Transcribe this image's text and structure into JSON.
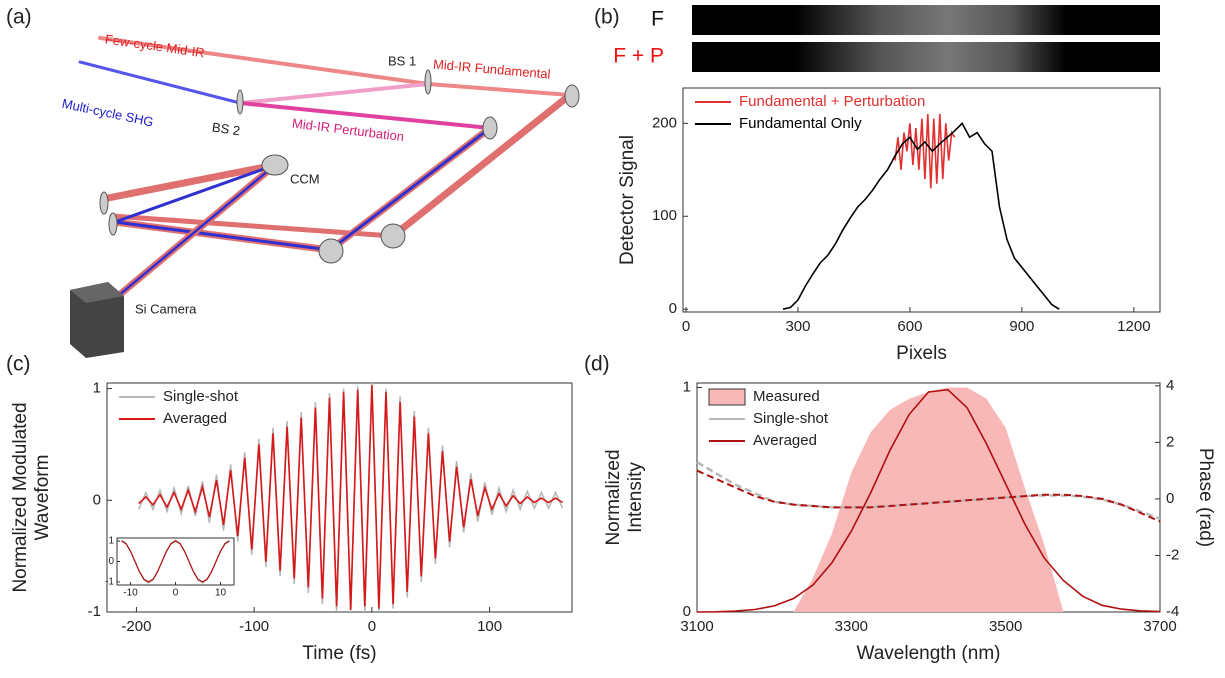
{
  "diagram": {
    "panel_label": "(a)",
    "labels": [
      "Few-cycle Mid-IR",
      "BS 1",
      "Mid-IR Fundamental",
      "Multi-cycle SHG",
      "BS 2",
      "Mid-IR Perturbation",
      "CCM",
      "Si Camera"
    ]
  },
  "chart_data": [
    {
      "type": "line",
      "label": "(b)",
      "image_labels": [
        {
          "text": "F",
          "color": "#111111"
        },
        {
          "text": "F + P",
          "color": "#ee1111"
        }
      ],
      "xlabel": "Pixels",
      "ylabel": [
        "Detector Signal"
      ],
      "xlim": [
        -8,
        1270
      ],
      "ylim": [
        -3,
        238
      ],
      "xticks": [
        0,
        300,
        600,
        900,
        1200
      ],
      "yticks": [
        0,
        100,
        200
      ],
      "legend": "upper left",
      "legend_text_color": "series",
      "series": [
        {
          "name": "Fundamental + Perturbation",
          "color": "#e03030",
          "x": [
            560,
            568,
            576,
            584,
            592,
            600,
            608,
            616,
            624,
            632,
            640,
            648,
            656,
            664,
            672,
            680,
            688,
            696,
            704,
            712,
            720
          ],
          "values": [
            160,
            185,
            150,
            190,
            170,
            200,
            155,
            195,
            150,
            205,
            140,
            210,
            130,
            205,
            135,
            210,
            140,
            200,
            160,
            190,
            185
          ]
        },
        {
          "name": "Fundamental Only",
          "color": "#000000",
          "x": [
            260,
            280,
            300,
            320,
            340,
            360,
            380,
            400,
            420,
            440,
            460,
            480,
            500,
            520,
            540,
            560,
            580,
            600,
            620,
            640,
            660,
            680,
            700,
            720,
            740,
            760,
            780,
            800,
            820,
            840,
            860,
            880,
            900,
            920,
            940,
            960,
            980,
            1000
          ],
          "values": [
            0,
            2,
            10,
            25,
            38,
            50,
            58,
            70,
            85,
            98,
            110,
            118,
            128,
            140,
            150,
            165,
            178,
            185,
            172,
            180,
            170,
            178,
            185,
            192,
            200,
            185,
            190,
            178,
            170,
            110,
            75,
            55,
            45,
            35,
            25,
            15,
            5,
            0
          ]
        }
      ]
    },
    {
      "type": "line",
      "label": "(c)",
      "xlabel": "Time (fs)",
      "ylabel": [
        "Normalized Modulated",
        "Waveform"
      ],
      "xlim": [
        -225,
        170
      ],
      "ylim": [
        -1,
        1.05
      ],
      "xticks": [
        -200,
        -100,
        0,
        100
      ],
      "yticks": [
        -1,
        0,
        1
      ],
      "legend": "upper left",
      "x": [
        -198,
        -192,
        -186,
        -180,
        -174,
        -168,
        -162,
        -156,
        -150,
        -144,
        -138,
        -132,
        -126,
        -120,
        -114,
        -108,
        -102,
        -96,
        -90,
        -84,
        -78,
        -72,
        -66,
        -60,
        -54,
        -48,
        -42,
        -36,
        -30,
        -24,
        -18,
        -12,
        -6,
        0,
        6,
        12,
        18,
        24,
        30,
        36,
        42,
        48,
        54,
        60,
        66,
        72,
        78,
        84,
        90,
        96,
        102,
        108,
        114,
        120,
        126,
        132,
        138,
        144,
        150,
        156,
        162
      ],
      "series": [
        {
          "name": "Single-shot",
          "color": "#b8b8b8",
          "values": [
            -0.08,
            0.07,
            -0.08,
            0.09,
            -0.1,
            0.11,
            -0.12,
            0.13,
            -0.14,
            0.17,
            -0.2,
            0.23,
            -0.27,
            0.32,
            -0.37,
            0.43,
            -0.49,
            0.55,
            -0.6,
            0.65,
            -0.68,
            0.71,
            -0.75,
            0.79,
            -0.83,
            0.88,
            -0.93,
            0.96,
            -0.99,
            1.0,
            -1.0,
            1.02,
            -1.0,
            1.05,
            -1.0,
            1.0,
            -0.97,
            0.93,
            -0.87,
            0.8,
            -0.73,
            0.65,
            -0.57,
            0.49,
            -0.42,
            0.35,
            -0.29,
            0.24,
            -0.19,
            0.16,
            -0.13,
            0.11,
            -0.1,
            0.09,
            -0.08,
            0.08,
            -0.07,
            0.07,
            -0.07,
            0.07,
            -0.07
          ]
        },
        {
          "name": "Averaged",
          "color": "#d81818",
          "values": [
            -0.03,
            0.03,
            -0.04,
            0.05,
            -0.06,
            0.07,
            -0.08,
            0.09,
            -0.1,
            0.12,
            -0.15,
            0.18,
            -0.22,
            0.27,
            -0.32,
            0.38,
            -0.44,
            0.5,
            -0.55,
            0.6,
            -0.63,
            0.66,
            -0.7,
            0.74,
            -0.78,
            0.83,
            -0.88,
            0.92,
            -0.95,
            0.97,
            -0.98,
            0.99,
            -0.95,
            1.03,
            -0.97,
            0.97,
            -0.93,
            0.88,
            -0.82,
            0.75,
            -0.68,
            0.6,
            -0.52,
            0.44,
            -0.37,
            0.3,
            -0.24,
            0.19,
            -0.14,
            0.11,
            -0.08,
            0.06,
            -0.05,
            0.04,
            -0.03,
            0.03,
            -0.02,
            0.02,
            -0.02,
            0.02,
            -0.02
          ]
        }
      ]
    },
    {
      "type": "line",
      "xlim": [
        -13,
        13
      ],
      "ylim": [
        -1.15,
        1.15
      ],
      "xticks": [
        -10,
        0,
        10
      ],
      "yticks": [
        -1,
        0,
        1
      ],
      "x": [
        -12,
        -11,
        -10,
        -9,
        -8,
        -7,
        -6,
        -5,
        -4,
        -3,
        -2,
        -1,
        0,
        1,
        2,
        3,
        4,
        5,
        6,
        7,
        8,
        9,
        10,
        11,
        12
      ],
      "series": [
        {
          "color": "#b8b8b8",
          "values": [
            1.05,
            0.9,
            0.52,
            0,
            -0.52,
            -0.9,
            -1.05,
            -0.9,
            -0.52,
            0,
            0.52,
            0.9,
            1.05,
            0.9,
            0.52,
            0,
            -0.52,
            -0.9,
            -1.05,
            -0.9,
            -0.52,
            0,
            0.52,
            0.9,
            1.05
          ]
        },
        {
          "color": "#b01010",
          "values": [
            1,
            0.87,
            0.5,
            0,
            -0.5,
            -0.87,
            -1,
            -0.87,
            -0.5,
            0,
            0.5,
            0.87,
            1,
            0.87,
            0.5,
            0,
            -0.5,
            -0.87,
            -1,
            -0.87,
            -0.5,
            0,
            0.5,
            0.87,
            1
          ]
        }
      ]
    },
    {
      "type": "line",
      "label": "(d)",
      "xlabel": "Wavelength (nm)",
      "ylabel": [
        "Normalized",
        "Intensity"
      ],
      "y2label": "Phase (rad)",
      "xlim": [
        3100,
        3700
      ],
      "ylim": [
        0,
        1.02
      ],
      "y2lim": [
        -4,
        4.1
      ],
      "xticks": [
        3100,
        3300,
        3500,
        3700
      ],
      "yticks": [
        0,
        1
      ],
      "y2ticks": [
        -4,
        -2,
        0,
        2,
        4
      ],
      "legend": "upper left",
      "x": [
        3100,
        3125,
        3150,
        3175,
        3200,
        3225,
        3250,
        3275,
        3300,
        3325,
        3350,
        3375,
        3400,
        3425,
        3450,
        3475,
        3500,
        3525,
        3550,
        3575,
        3600,
        3625,
        3650,
        3675,
        3700
      ],
      "series": [
        {
          "name": "Measured",
          "color": "#f8b8b8",
          "fill": true,
          "values": [
            0,
            0,
            0,
            0,
            0,
            0,
            0.15,
            0.35,
            0.62,
            0.8,
            0.9,
            0.95,
            0.98,
            1.0,
            1.0,
            0.95,
            0.82,
            0.55,
            0.3,
            0,
            0,
            0,
            0,
            0,
            0
          ]
        },
        {
          "name": "Single-shot",
          "color": "#b8b8b8",
          "axis": "y2",
          "values": [
            1.3,
            0.9,
            0.5,
            0.2,
            -0.1,
            -0.2,
            -0.25,
            -0.3,
            -0.3,
            -0.28,
            -0.25,
            -0.2,
            -0.15,
            -0.1,
            -0.05,
            0,
            0.05,
            0.1,
            0.12,
            0.12,
            0.08,
            -0.02,
            -0.2,
            -0.45,
            -0.7
          ]
        },
        {
          "name": "Averaged",
          "color": "#b01010",
          "values": [
            0,
            0.001,
            0.004,
            0.011,
            0.027,
            0.06,
            0.12,
            0.22,
            0.36,
            0.53,
            0.72,
            0.88,
            0.98,
            0.99,
            0.91,
            0.75,
            0.57,
            0.39,
            0.24,
            0.14,
            0.07,
            0.03,
            0.013,
            0.005,
            0.002
          ],
          "phase": [
            1.0,
            0.7,
            0.4,
            0.1,
            -0.1,
            -0.2,
            -0.25,
            -0.3,
            -0.3,
            -0.3,
            -0.25,
            -0.2,
            -0.15,
            -0.1,
            -0.05,
            0,
            0.05,
            0.1,
            0.15,
            0.15,
            0.1,
            0,
            -0.2,
            -0.5,
            -0.8
          ]
        }
      ]
    }
  ]
}
